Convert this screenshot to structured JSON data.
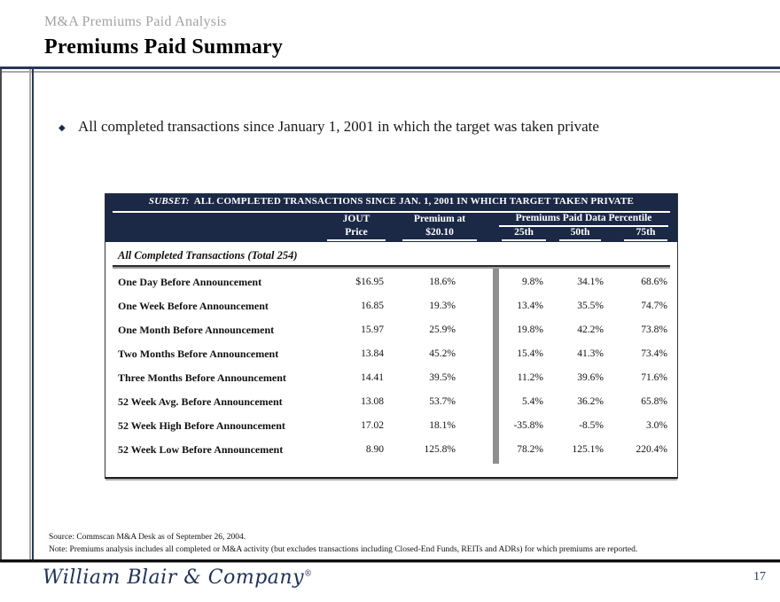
{
  "header": {
    "eyebrow": "M&A Premiums Paid Analysis",
    "title": "Premiums Paid Summary"
  },
  "bullet": {
    "marker_glyph": "◆",
    "text": "All completed transactions since January 1, 2001 in which the target was taken private"
  },
  "table": {
    "subset_label": "SUBSET:",
    "subset_title": "ALL COMPLETED TRANSACTIONS SINCE JAN. 1, 2001 IN WHICH TARGET TAKEN PRIVATE",
    "col_price_line1": "JOUT",
    "col_price_line2": "Price",
    "col_premium_line1": "Premium at",
    "col_premium_line2": "$20.10",
    "percentile_group": "Premiums Paid Data Percentile",
    "percentile_cols": [
      "25th",
      "50th",
      "75th"
    ],
    "section_header": "All Completed Transactions (Total 254)",
    "rows": [
      {
        "label": "One Day Before Announcement",
        "price": "$16.95",
        "premium": "18.6%",
        "p25": "9.8%",
        "p50": "34.1%",
        "p75": "68.6%"
      },
      {
        "label": "One Week Before Announcement",
        "price": "16.85",
        "premium": "19.3%",
        "p25": "13.4%",
        "p50": "35.5%",
        "p75": "74.7%"
      },
      {
        "label": "One Month Before Announcement",
        "price": "15.97",
        "premium": "25.9%",
        "p25": "19.8%",
        "p50": "42.2%",
        "p75": "73.8%"
      },
      {
        "label": "Two Months Before Announcement",
        "price": "13.84",
        "premium": "45.2%",
        "p25": "15.4%",
        "p50": "41.3%",
        "p75": "73.4%"
      },
      {
        "label": "Three Months Before Announcement",
        "price": "14.41",
        "premium": "39.5%",
        "p25": "11.2%",
        "p50": "39.6%",
        "p75": "71.6%"
      },
      {
        "label": "52 Week Avg. Before Announcement",
        "price": "13.08",
        "premium": "53.7%",
        "p25": "5.4%",
        "p50": "36.2%",
        "p75": "65.8%"
      },
      {
        "label": "52 Week High Before Announcement",
        "price": "17.02",
        "premium": "18.1%",
        "p25": "-35.8%",
        "p50": "-8.5%",
        "p75": "3.0%"
      },
      {
        "label": "52 Week Low Before Announcement",
        "price": "8.90",
        "premium": "125.8%",
        "p25": "78.2%",
        "p50": "125.1%",
        "p75": "220.4%"
      }
    ]
  },
  "footnotes": {
    "source": "Source: Commscan M&A Desk as of September 26, 2004.",
    "note": "Note: Premiums analysis includes all completed or M&A activity (but excludes transactions including Closed-End Funds, REITs and ADRs) for which premiums are reported."
  },
  "footer": {
    "logo_text": "William Blair & Company",
    "registered_mark": "®",
    "page_number": "17"
  },
  "colors": {
    "navy_header": "#1b2946",
    "rule_navy": "#27375c",
    "rule_gray": "#a9a9a9",
    "divider_bar_gray": "#8f8f8f",
    "eyebrow_gray": "#a2a2a2",
    "logo_navy": "#1f3156"
  }
}
